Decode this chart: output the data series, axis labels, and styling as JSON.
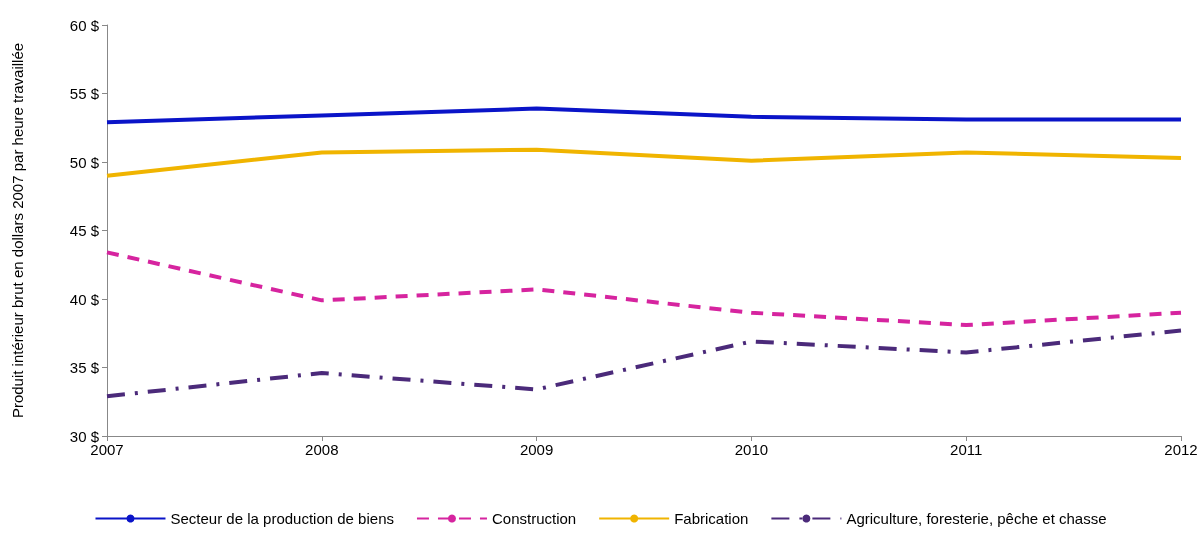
{
  "chart_data": {
    "type": "line",
    "ylabel": "Produit intérieur brut en dollars 2007 par heure travaillée",
    "categories": [
      "2007",
      "2008",
      "2009",
      "2010",
      "2011",
      "2012"
    ],
    "series": [
      {
        "name": "Secteur de la production de biens",
        "color": "#0a14c8",
        "line_style": "solid",
        "values": [
          52.9,
          53.4,
          53.9,
          53.3,
          53.1,
          53.1
        ]
      },
      {
        "name": "Construction",
        "color": "#d6249f",
        "line_style": "dashed",
        "values": [
          43.4,
          39.9,
          40.7,
          39.0,
          38.1,
          39.0
        ]
      },
      {
        "name": "Fabrication",
        "color": "#f0b400",
        "line_style": "solid",
        "values": [
          49.0,
          50.7,
          50.9,
          50.1,
          50.7,
          50.3
        ]
      },
      {
        "name": "Agriculture, foresterie, pêche et chasse",
        "color": "#4b2a7a",
        "line_style": "dashdot",
        "values": [
          32.9,
          34.6,
          33.4,
          36.9,
          36.1,
          37.7
        ]
      }
    ],
    "ylim": [
      30,
      60
    ],
    "yticks": [
      {
        "value": 30,
        "label": "30 $"
      },
      {
        "value": 35,
        "label": "35 $"
      },
      {
        "value": 40,
        "label": "40 $"
      },
      {
        "value": 45,
        "label": "45 $"
      },
      {
        "value": 50,
        "label": "50 $"
      },
      {
        "value": 55,
        "label": "55 $"
      },
      {
        "value": 60,
        "label": "60 $"
      }
    ],
    "grid": false,
    "legend": "bottom",
    "marker": "none"
  }
}
